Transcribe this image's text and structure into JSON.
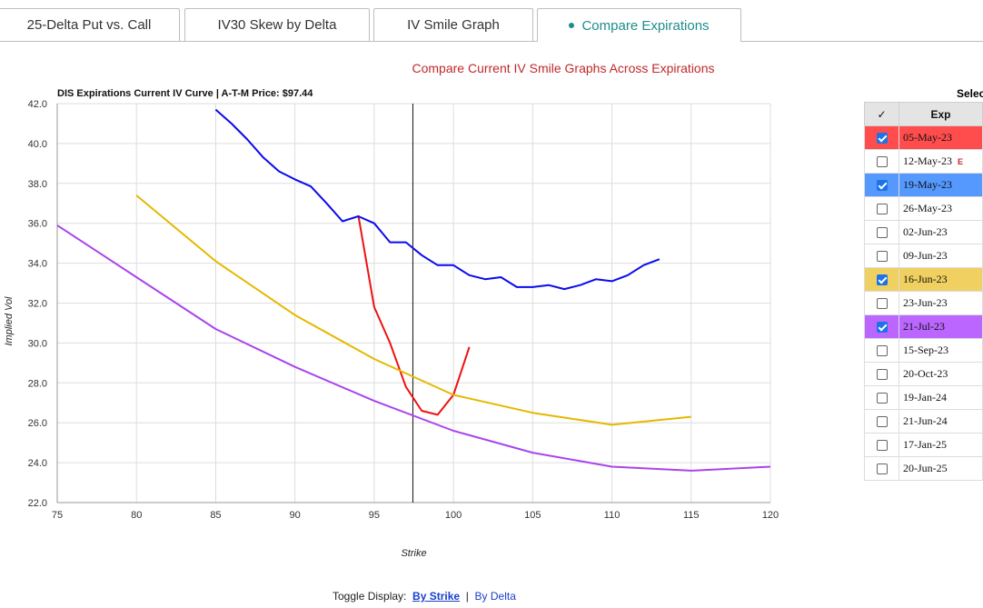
{
  "tabs": [
    {
      "label": "25-Delta Put vs. Call",
      "active": false
    },
    {
      "label": "IV30 Skew by Delta",
      "active": false
    },
    {
      "label": "IV Smile Graph",
      "active": false
    },
    {
      "label": "Compare Expirations",
      "active": true
    }
  ],
  "heading": "Compare Current IV Smile Graphs Across Expirations",
  "toggle": {
    "prefix": "Toggle Display:",
    "by_strike": "By Strike",
    "separator": "|",
    "by_delta": "By Delta",
    "active": "By Strike"
  },
  "selector": {
    "label": "Selec",
    "header_check": "✓",
    "header_exp": "Exp",
    "rows": [
      {
        "exp": "05-May-23",
        "checked": true,
        "color": "#ff4d4d",
        "earnings": ""
      },
      {
        "exp": "12-May-23",
        "checked": false,
        "color": "",
        "earnings": "E"
      },
      {
        "exp": "19-May-23",
        "checked": true,
        "color": "#5599ff",
        "earnings": ""
      },
      {
        "exp": "26-May-23",
        "checked": false,
        "color": "",
        "earnings": ""
      },
      {
        "exp": "02-Jun-23",
        "checked": false,
        "color": "",
        "earnings": ""
      },
      {
        "exp": "09-Jun-23",
        "checked": false,
        "color": "",
        "earnings": ""
      },
      {
        "exp": "16-Jun-23",
        "checked": true,
        "color": "#f0d060",
        "earnings": ""
      },
      {
        "exp": "23-Jun-23",
        "checked": false,
        "color": "",
        "earnings": ""
      },
      {
        "exp": "21-Jul-23",
        "checked": true,
        "color": "#bb66ff",
        "earnings": ""
      },
      {
        "exp": "15-Sep-23",
        "checked": false,
        "color": "",
        "earnings": ""
      },
      {
        "exp": "20-Oct-23",
        "checked": false,
        "color": "",
        "earnings": ""
      },
      {
        "exp": "19-Jan-24",
        "checked": false,
        "color": "",
        "earnings": ""
      },
      {
        "exp": "21-Jun-24",
        "checked": false,
        "color": "",
        "earnings": ""
      },
      {
        "exp": "17-Jan-25",
        "checked": false,
        "color": "",
        "earnings": ""
      },
      {
        "exp": "20-Jun-25",
        "checked": false,
        "color": "",
        "earnings": ""
      }
    ]
  },
  "chart_data": {
    "type": "line",
    "title": "DIS Expirations Current IV Curve | A-T-M Price: $97.44",
    "xlabel": "Strike",
    "ylabel": "Implied Vol",
    "xlim": [
      75,
      120
    ],
    "ylim": [
      22,
      42
    ],
    "xticks": [
      75,
      80,
      85,
      90,
      95,
      100,
      105,
      110,
      115,
      120
    ],
    "yticks": [
      "22.0",
      "24.0",
      "26.0",
      "28.0",
      "30.0",
      "32.0",
      "34.0",
      "36.0",
      "38.0",
      "40.0",
      "42.0"
    ],
    "grid": true,
    "atm_price": 97.44,
    "series": [
      {
        "color": "#ee1111",
        "x": [
          94,
          95,
          96,
          97,
          98,
          99,
          100,
          101
        ],
        "y": [
          36.4,
          31.8,
          30.0,
          27.8,
          26.6,
          26.4,
          27.4,
          29.8
        ]
      },
      {
        "color": "#0a0aee",
        "x": [
          85,
          86,
          87,
          88,
          89,
          90,
          91,
          92,
          93,
          94,
          95,
          96,
          97,
          98,
          99,
          100,
          101,
          102,
          103,
          104,
          105,
          106,
          107,
          108,
          109,
          110,
          111,
          112,
          113
        ],
        "y": [
          41.7,
          41.0,
          40.2,
          39.3,
          38.6,
          38.2,
          37.85,
          37.0,
          36.1,
          36.35,
          36.0,
          35.05,
          35.05,
          34.4,
          33.9,
          33.9,
          33.4,
          33.2,
          33.3,
          32.8,
          32.8,
          32.9,
          32.7,
          32.9,
          33.2,
          33.1,
          33.4,
          33.9,
          34.2
        ]
      },
      {
        "color": "#e6b800",
        "x": [
          80,
          85,
          90,
          95,
          100,
          105,
          110,
          115
        ],
        "y": [
          37.4,
          34.1,
          31.4,
          29.2,
          27.4,
          26.5,
          25.9,
          26.3
        ]
      },
      {
        "color": "#aa44ee",
        "x": [
          75,
          80,
          85,
          90,
          95,
          100,
          105,
          110,
          115,
          120
        ],
        "y": [
          35.9,
          33.3,
          30.7,
          28.8,
          27.1,
          25.6,
          24.5,
          23.8,
          23.6,
          23.8
        ]
      }
    ]
  }
}
